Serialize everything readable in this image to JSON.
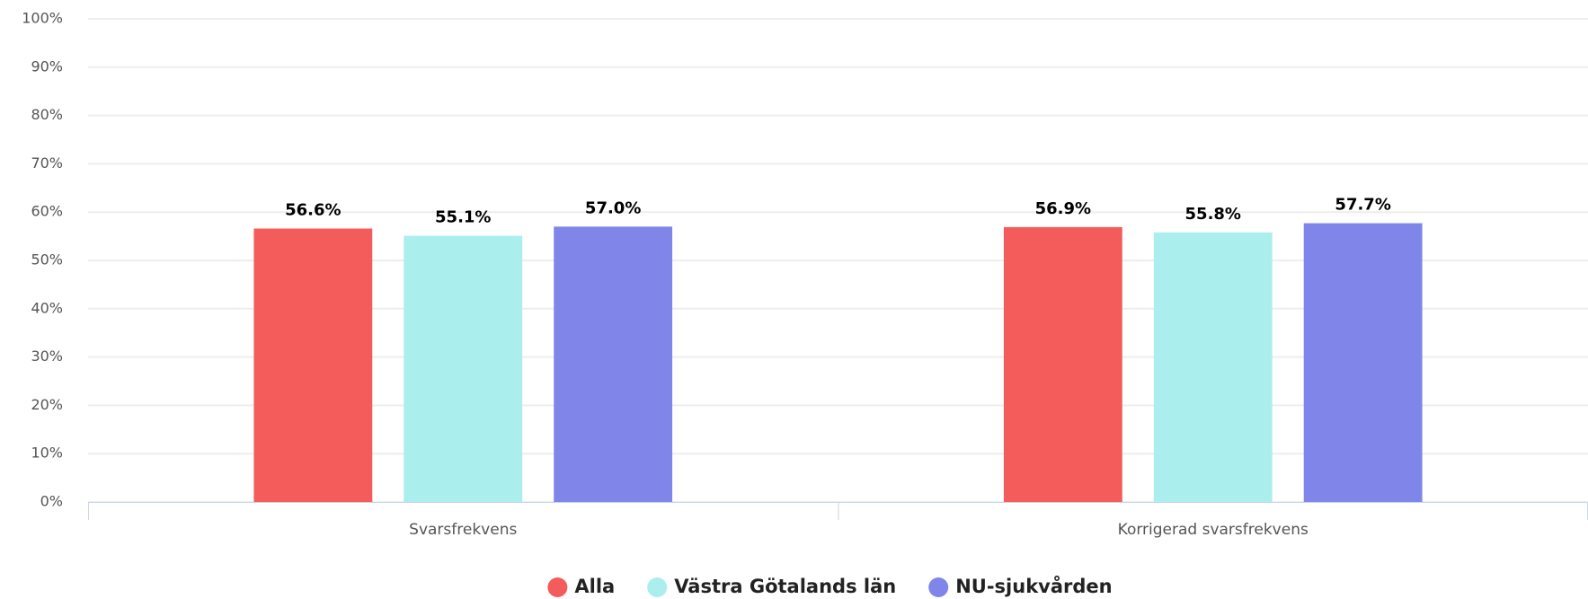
{
  "chart_data": {
    "type": "bar",
    "categories": [
      "Svarsfrekvens",
      "Korrigerad svarsfrekvens"
    ],
    "series": [
      {
        "name": "Alla",
        "color": "#f45b5b",
        "values": [
          56.6,
          56.9
        ],
        "value_labels": [
          "56.6%",
          "56.9%"
        ]
      },
      {
        "name": "Västra Götalands län",
        "color": "#aaeeee",
        "values": [
          55.1,
          55.8
        ],
        "value_labels": [
          "55.1%",
          "55.8%"
        ]
      },
      {
        "name": "NU-sjukvården",
        "color": "#8085e9",
        "values": [
          57.0,
          57.7
        ],
        "value_labels": [
          "57.0%",
          "57.7%"
        ]
      }
    ],
    "ylim": [
      0,
      100
    ],
    "yticks": [
      {
        "value": 0,
        "label": "0%"
      },
      {
        "value": 10,
        "label": "10%"
      },
      {
        "value": 20,
        "label": "20%"
      },
      {
        "value": 30,
        "label": "30%"
      },
      {
        "value": 40,
        "label": "40%"
      },
      {
        "value": 50,
        "label": "50%"
      },
      {
        "value": 60,
        "label": "60%"
      },
      {
        "value": 70,
        "label": "70%"
      },
      {
        "value": 80,
        "label": "80%"
      },
      {
        "value": 90,
        "label": "90%"
      },
      {
        "value": 100,
        "label": "100%"
      }
    ],
    "grid": true,
    "legend": "bottom"
  }
}
